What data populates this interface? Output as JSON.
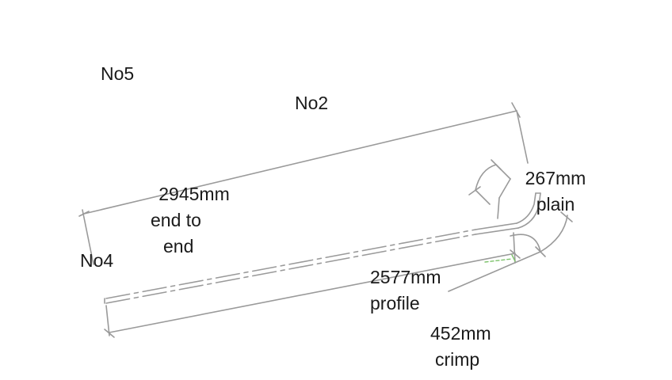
{
  "labels": {
    "no5": "No5",
    "no2": "No2",
    "no4": "No4",
    "end_to_end": {
      "value": "2945mm",
      "line2": "end to",
      "line3": "end"
    },
    "plain": {
      "value": "267mm",
      "line2": "plain"
    },
    "profile": {
      "value": "2577mm",
      "line2": "profile"
    },
    "crimp": {
      "value": "452mm",
      "line2": "crimp"
    }
  },
  "colors": {
    "line": "#9a9a9a",
    "text": "#1a1a1a",
    "accent": "#7cc26a",
    "background": "#ffffff"
  }
}
